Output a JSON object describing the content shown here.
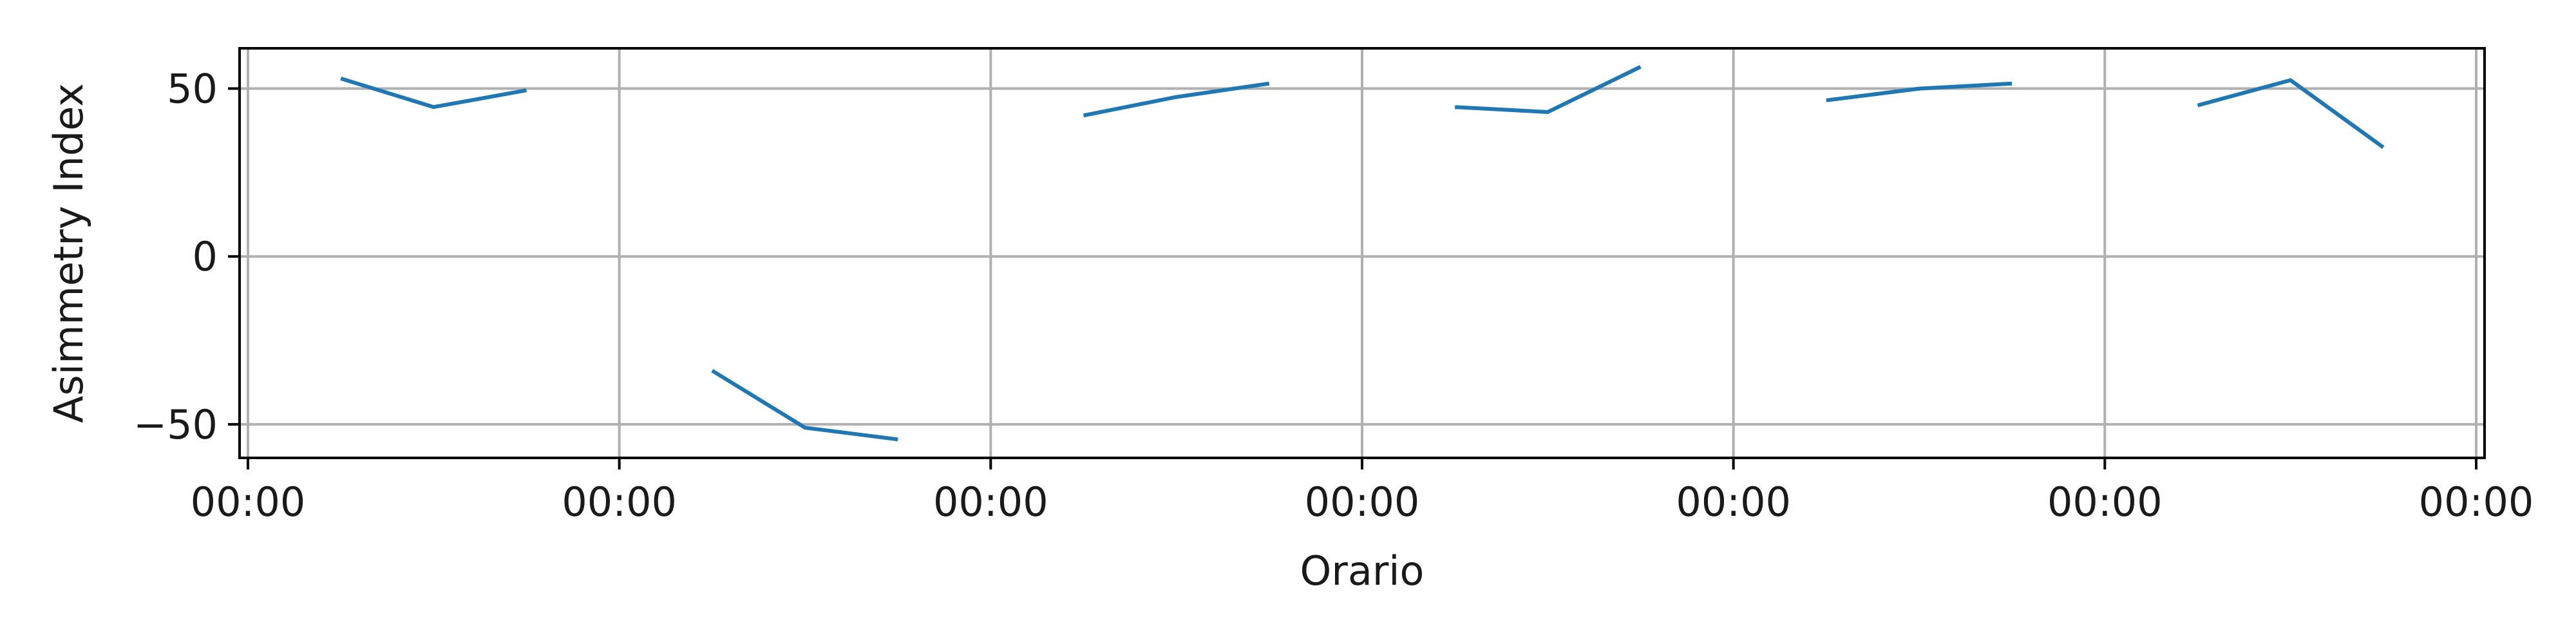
{
  "chart_data": {
    "type": "line",
    "xlabel": "Orario",
    "ylabel": "Asimmetry Index",
    "xlim": [
      0,
      24
    ],
    "ylim": [
      -60,
      62
    ],
    "grid": true,
    "x_ticks": [
      {
        "value": 0,
        "label": "00:00"
      },
      {
        "value": 4,
        "label": "00:00"
      },
      {
        "value": 8,
        "label": "00:00"
      },
      {
        "value": 12,
        "label": "00:00"
      },
      {
        "value": 16,
        "label": "00:00"
      },
      {
        "value": 20,
        "label": "00:00"
      },
      {
        "value": 24,
        "label": "00:00"
      }
    ],
    "y_ticks": [
      {
        "value": 50,
        "label": "50"
      },
      {
        "value": 0,
        "label": "0"
      },
      {
        "value": -50,
        "label": "−50"
      }
    ],
    "series_color": "#1f77b4",
    "segments": [
      {
        "x": [
          1,
          2,
          3
        ],
        "y": [
          53,
          44.5,
          49.5
        ]
      },
      {
        "x": [
          5,
          6,
          7
        ],
        "y": [
          -34,
          -51,
          -54.5
        ]
      },
      {
        "x": [
          9,
          10,
          11
        ],
        "y": [
          42,
          47.5,
          51.5
        ]
      },
      {
        "x": [
          13,
          14,
          15
        ],
        "y": [
          44.5,
          43,
          56.5
        ]
      },
      {
        "x": [
          17,
          18,
          19
        ],
        "y": [
          46.5,
          50,
          51.5
        ]
      },
      {
        "x": [
          21,
          22,
          23
        ],
        "y": [
          45,
          52.5,
          32.5
        ]
      }
    ]
  }
}
